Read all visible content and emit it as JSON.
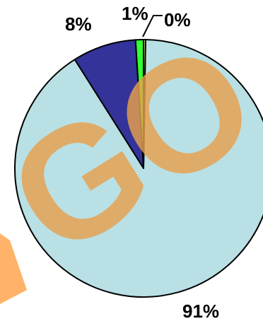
{
  "chart_data": {
    "type": "pie",
    "slices": [
      {
        "label": "91%",
        "value": 91,
        "color": "#b9e0e4"
      },
      {
        "label": "8%",
        "value": 8,
        "color": "#333399"
      },
      {
        "label": "1%",
        "value": 1,
        "color": "#33ff33"
      },
      {
        "label": "0%",
        "value": 0.25,
        "color": "#ffff99"
      }
    ],
    "start_direction": "top",
    "direction": "counterclockwise",
    "legend": "none"
  },
  "watermark": {
    "text": "GO",
    "color": "#e8a04d"
  }
}
